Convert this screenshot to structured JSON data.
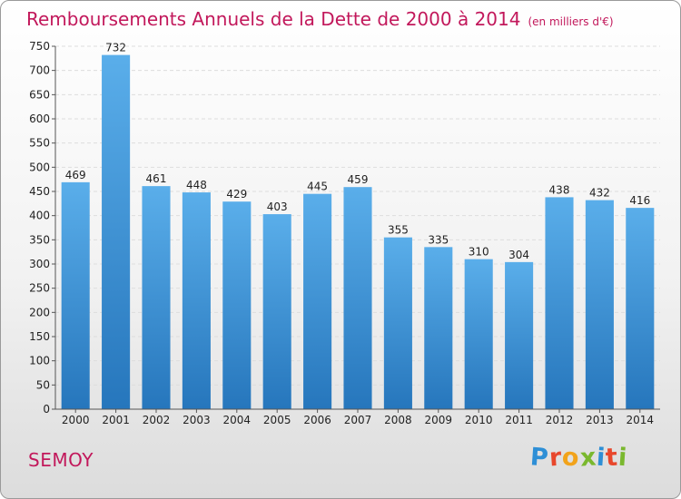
{
  "header": {
    "title": "Remboursements Annuels de la Dette de 2000 à 2014",
    "subtitle": "(en milliers d'€)"
  },
  "footer": {
    "commune": "SEMOY",
    "logo_letters": [
      "P",
      "r",
      "o",
      "x",
      "i",
      "t",
      "i"
    ],
    "logo_colors": [
      "#2e8fd6",
      "#e8472c",
      "#f2a31b",
      "#7ab82e",
      "#2e8fd6",
      "#e8472c",
      "#7ab82e"
    ]
  },
  "chart_data": {
    "type": "bar",
    "categories": [
      "2000",
      "2001",
      "2002",
      "2003",
      "2004",
      "2005",
      "2006",
      "2007",
      "2008",
      "2009",
      "2010",
      "2011",
      "2012",
      "2013",
      "2014"
    ],
    "values": [
      469,
      732,
      461,
      448,
      429,
      403,
      445,
      459,
      355,
      335,
      310,
      304,
      438,
      432,
      416
    ],
    "title": "Remboursements Annuels de la Dette de 2000 à 2014",
    "ylim": [
      0,
      750
    ],
    "yticks": [
      0,
      50,
      100,
      150,
      200,
      250,
      300,
      350,
      400,
      450,
      500,
      550,
      600,
      650,
      700,
      750
    ],
    "grid": true,
    "bar_color_top": "#5aaeea",
    "bar_color_bottom": "#2676bc"
  }
}
